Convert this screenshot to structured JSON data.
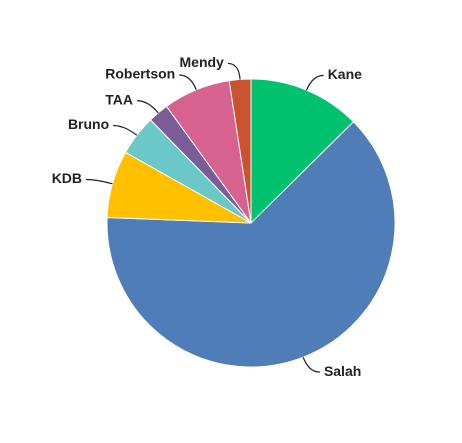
{
  "chart_data": {
    "type": "pie",
    "title": "",
    "labels": [
      "Kane",
      "Salah",
      "KDB",
      "Bruno",
      "TAA",
      "Robertson",
      "Mendy"
    ],
    "values": [
      12.5,
      62.5,
      7.5,
      4.5,
      2.3,
      7.5,
      2.4
    ],
    "colors": [
      "#00c16e",
      "#4f7db7",
      "#ffc000",
      "#6ac9c8",
      "#7a5d97",
      "#d8628f",
      "#c9522f"
    ],
    "grid": false,
    "legend": "none",
    "start_angle_deg": 0,
    "direction": "clockwise"
  }
}
